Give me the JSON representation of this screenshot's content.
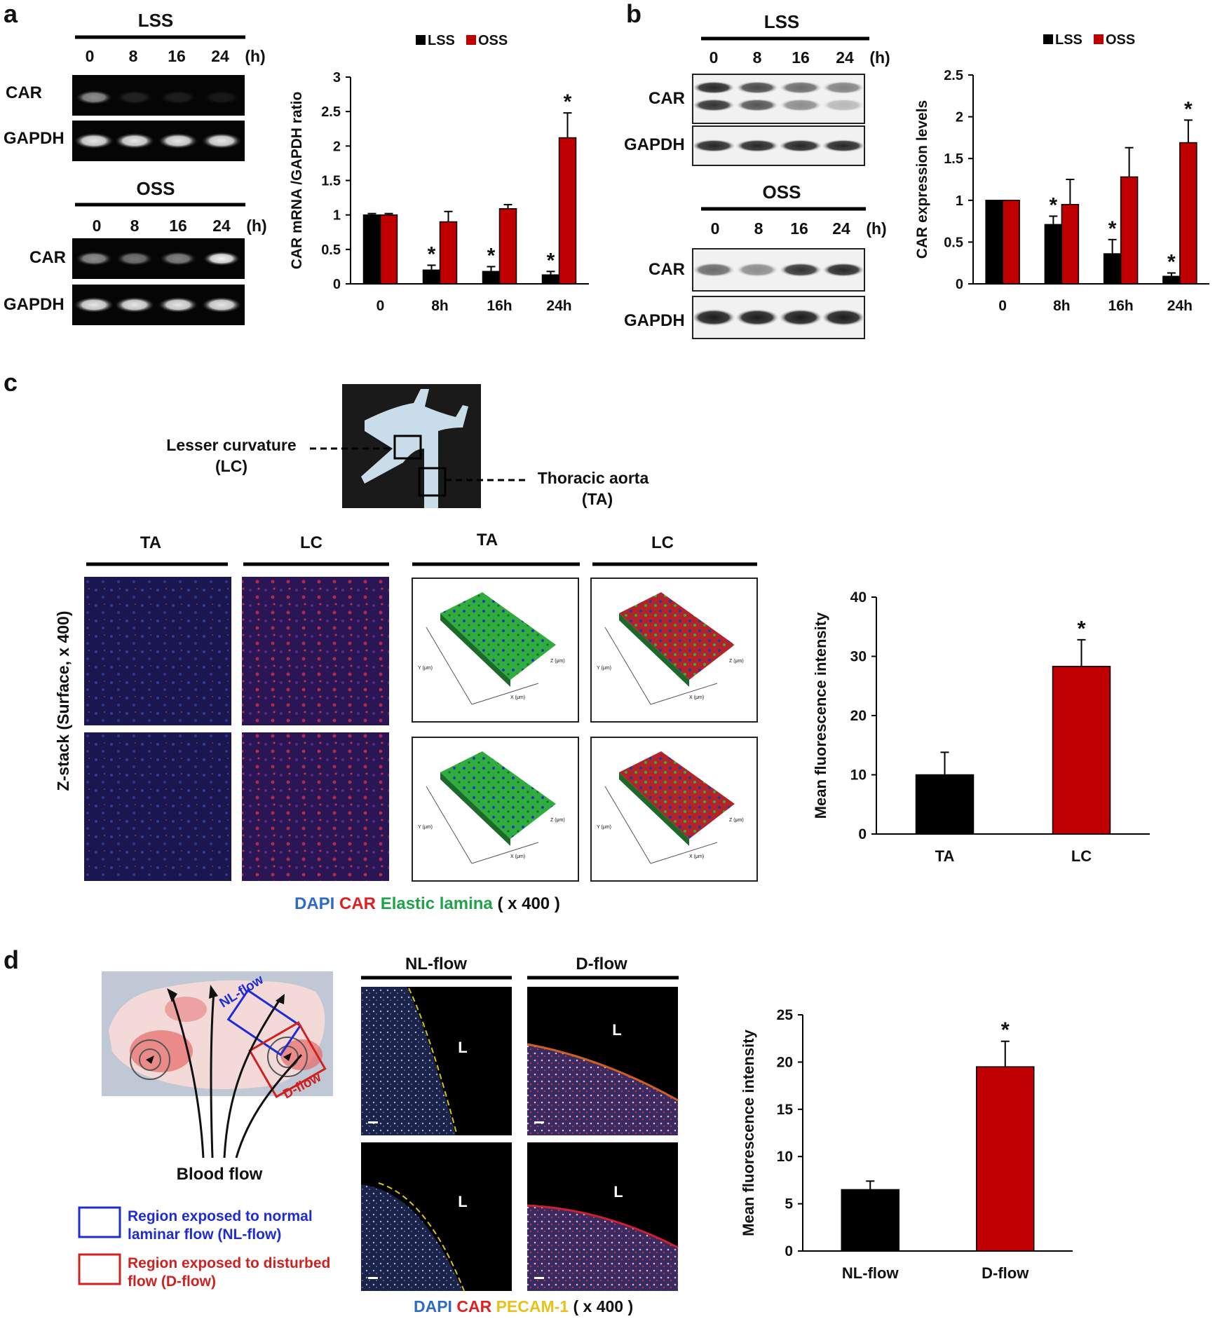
{
  "panels": {
    "a": {
      "letter": "a",
      "lss_title": "LSS",
      "oss_title": "OSS",
      "times": [
        "0",
        "8",
        "16",
        "24"
      ],
      "unit": "(h)",
      "band_labels": [
        "CAR",
        "GAPDH"
      ],
      "lss_car_intensity": [
        0.55,
        0.12,
        0.1,
        0.08
      ],
      "oss_car_intensity": [
        0.55,
        0.45,
        0.5,
        0.95
      ],
      "gapdh_intensity": [
        0.9,
        0.9,
        0.9,
        0.9
      ]
    },
    "b": {
      "letter": "b",
      "lss_title": "LSS",
      "oss_title": "OSS",
      "times": [
        "0",
        "8",
        "16",
        "24"
      ],
      "unit": "(h)",
      "band_labels": [
        "CAR",
        "GAPDH"
      ]
    },
    "c": {
      "letter": "c",
      "lesser_curvature": "Lesser curvature",
      "lc_abbr": "(LC)",
      "thoracic_aorta": "Thoracic aorta",
      "ta_abbr": "(TA)",
      "group_labels": [
        "TA",
        "LC",
        "TA",
        "LC"
      ],
      "zstack_label": "Z-stack  (Surface, x 400)",
      "stain_words": [
        {
          "text": "DAPI",
          "color": "#2e6cc7"
        },
        {
          "text": "CAR",
          "color": "#e02020"
        },
        {
          "text": "Elastic  lamina",
          "color": "#1fa34a"
        },
        {
          "text": "( x 400 )",
          "color": "#111111"
        }
      ],
      "axis3d": {
        "z": "Z (μm)",
        "y": "Y (μm)",
        "x": "X (μm)"
      }
    },
    "d": {
      "letter": "d",
      "nl_region": "NL-flow",
      "d_region": "D-flow",
      "blood_flow": "Blood flow",
      "group_labels": [
        "NL-flow",
        "D-flow"
      ],
      "lumen": "L",
      "legend_nl": [
        "Region  exposed to normal",
        "laminar flow (NL-flow)"
      ],
      "legend_d": [
        "Region  exposed to disturbed",
        "flow (D-flow)"
      ],
      "stain_words": [
        {
          "text": "DAPI",
          "color": "#2e6cc7"
        },
        {
          "text": "CAR",
          "color": "#e02020"
        },
        {
          "text": "PECAM-1",
          "color": "#e8c21a"
        },
        {
          "text": "( x 400 )",
          "color": "#111111"
        }
      ]
    }
  },
  "colors": {
    "lss": "#000000",
    "oss": "#c00000"
  },
  "chart_data": [
    {
      "id": "a",
      "type": "bar",
      "categories": [
        "0",
        "8h",
        "16h",
        "24h"
      ],
      "series": [
        {
          "name": "LSS",
          "values": [
            1.0,
            0.2,
            0.18,
            0.13
          ],
          "errors": [
            0.02,
            0.07,
            0.07,
            0.05
          ],
          "sig": [
            false,
            true,
            true,
            true
          ]
        },
        {
          "name": "OSS",
          "values": [
            1.0,
            0.9,
            1.09,
            2.12
          ],
          "errors": [
            0.02,
            0.15,
            0.06,
            0.36
          ],
          "sig": [
            false,
            false,
            false,
            true
          ]
        }
      ],
      "ylabel": "CAR mRNA /GAPDH ratio",
      "ylim": [
        0,
        3
      ],
      "yticks": [
        "0",
        "0.5",
        "1",
        "1.5",
        "2",
        "2.5",
        "3"
      ],
      "legend": "top"
    },
    {
      "id": "b",
      "type": "bar",
      "categories": [
        "0",
        "8h",
        "16h",
        "24h"
      ],
      "series": [
        {
          "name": "LSS",
          "values": [
            1.0,
            0.71,
            0.36,
            0.09
          ],
          "errors": [
            0.0,
            0.1,
            0.17,
            0.04
          ],
          "sig": [
            false,
            true,
            true,
            true
          ]
        },
        {
          "name": "OSS",
          "values": [
            1.0,
            0.95,
            1.28,
            1.69
          ],
          "errors": [
            0.0,
            0.3,
            0.35,
            0.27
          ],
          "sig": [
            false,
            false,
            false,
            true
          ]
        }
      ],
      "ylabel": "CAR  expression  levels",
      "ylim": [
        0,
        2.5
      ],
      "yticks": [
        "0",
        "0.5",
        "1",
        "1.5",
        "2",
        "2.5"
      ],
      "legend": "top"
    },
    {
      "id": "c",
      "type": "bar",
      "categories": [
        "TA",
        "LC"
      ],
      "series": [
        {
          "values": [
            10,
            28.3
          ],
          "errors": [
            3.8,
            4.5
          ],
          "sig": [
            false,
            true
          ]
        }
      ],
      "ylabel": "Mean fluorescence intensity",
      "ylim": [
        0,
        40
      ],
      "yticks": [
        "0",
        "10",
        "20",
        "30",
        "40"
      ]
    },
    {
      "id": "d",
      "type": "bar",
      "categories": [
        "NL-flow",
        "D-flow"
      ],
      "series": [
        {
          "values": [
            6.5,
            19.5
          ],
          "errors": [
            0.9,
            2.7
          ],
          "sig": [
            false,
            true
          ]
        }
      ],
      "ylabel": "Mean fluorescence intensity",
      "ylim": [
        0,
        25
      ],
      "yticks": [
        "0",
        "5",
        "10",
        "15",
        "20",
        "25"
      ]
    }
  ]
}
